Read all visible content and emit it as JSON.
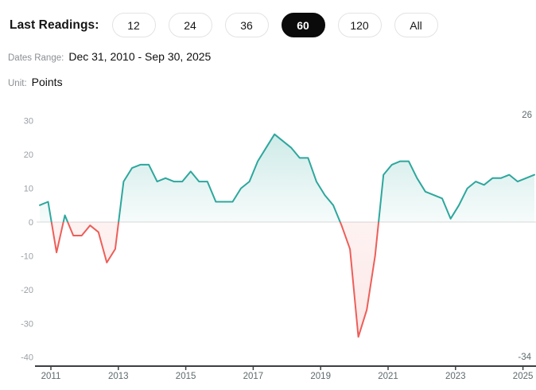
{
  "controls": {
    "label": "Last Readings:",
    "options": [
      {
        "label": "12",
        "selected": false
      },
      {
        "label": "24",
        "selected": false
      },
      {
        "label": "36",
        "selected": false
      },
      {
        "label": "60",
        "selected": true
      },
      {
        "label": "120",
        "selected": false
      },
      {
        "label": "All",
        "selected": false
      }
    ]
  },
  "meta": {
    "dates_range_label": "Dates Range:",
    "dates_range_value": "Dec 31, 2010 - Sep 30, 2025",
    "unit_label": "Unit:",
    "unit_value": "Points"
  },
  "chart_data": {
    "type": "area",
    "title": "",
    "xlabel": "",
    "ylabel": "Points",
    "x": [
      "2010-12-31",
      "2011-03-31",
      "2011-06-30",
      "2011-09-30",
      "2011-12-31",
      "2012-03-31",
      "2012-06-30",
      "2012-09-30",
      "2012-12-31",
      "2013-03-31",
      "2013-06-30",
      "2013-09-30",
      "2013-12-31",
      "2014-03-31",
      "2014-06-30",
      "2014-09-30",
      "2014-12-31",
      "2015-03-31",
      "2015-06-30",
      "2015-09-30",
      "2015-12-31",
      "2016-03-31",
      "2016-06-30",
      "2016-09-30",
      "2016-12-31",
      "2017-03-31",
      "2017-06-30",
      "2017-09-30",
      "2017-12-31",
      "2018-03-31",
      "2018-06-30",
      "2018-09-30",
      "2018-12-31",
      "2019-03-31",
      "2019-06-30",
      "2019-09-30",
      "2019-12-31",
      "2020-03-31",
      "2020-06-30",
      "2020-09-30",
      "2020-12-31",
      "2021-03-31",
      "2021-06-30",
      "2021-09-30",
      "2021-12-31",
      "2022-03-31",
      "2022-06-30",
      "2022-09-30",
      "2022-12-31",
      "2023-03-31",
      "2023-06-30",
      "2023-09-30",
      "2023-12-31",
      "2024-03-31",
      "2024-06-30",
      "2024-09-30",
      "2024-12-31",
      "2025-03-31",
      "2025-06-30",
      "2025-09-30"
    ],
    "values": [
      5,
      6,
      -9,
      2,
      -4,
      -4,
      -1,
      -3,
      -12,
      -8,
      12,
      16,
      17,
      17,
      12,
      13,
      12,
      12,
      15,
      12,
      12,
      6,
      6,
      6,
      10,
      12,
      18,
      22,
      26,
      24,
      22,
      19,
      19,
      12,
      8,
      5,
      -1,
      -8,
      -34,
      -26,
      -10,
      14,
      17,
      18,
      18,
      13,
      9,
      8,
      7,
      1,
      5,
      10,
      12,
      11,
      13,
      13,
      14,
      12,
      13,
      14
    ],
    "ylim": [
      -40,
      30
    ],
    "yticks": [
      30,
      20,
      10,
      0,
      -10,
      -20,
      -30,
      -40
    ],
    "xticks": [
      "2011",
      "2013",
      "2015",
      "2017",
      "2019",
      "2021",
      "2023",
      "2025"
    ],
    "max_annotation": "26",
    "min_annotation": "-34",
    "positive_color": "#2da79d",
    "negative_color": "#ed5e58",
    "grid": "zero-line-only",
    "legend": "none"
  }
}
